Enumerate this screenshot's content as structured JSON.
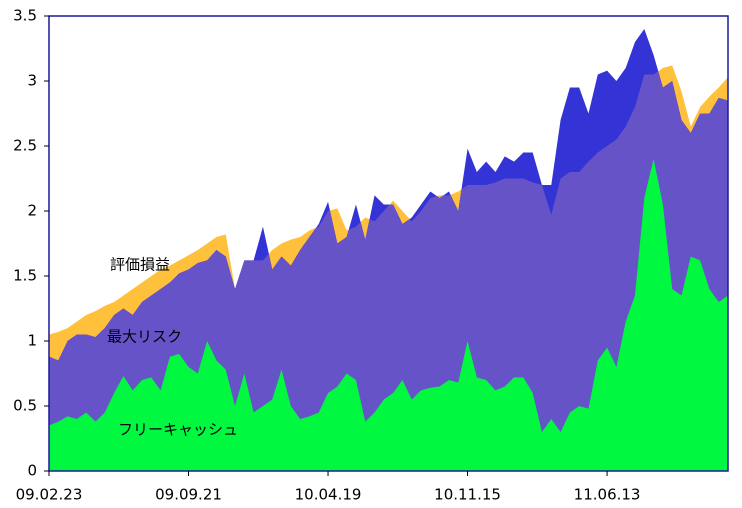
{
  "chart_data": {
    "type": "area",
    "categories": [
      "09.02.23",
      null,
      null,
      null,
      null,
      null,
      null,
      null,
      null,
      null,
      null,
      null,
      null,
      null,
      null,
      "09.09.21",
      null,
      null,
      null,
      null,
      null,
      null,
      null,
      null,
      null,
      null,
      null,
      null,
      null,
      null,
      "10.04.19",
      null,
      null,
      null,
      null,
      null,
      null,
      null,
      null,
      null,
      null,
      null,
      null,
      null,
      null,
      "10.11.15",
      null,
      null,
      null,
      null,
      null,
      null,
      null,
      null,
      null,
      null,
      null,
      null,
      null,
      null,
      "11.06.13",
      null,
      null,
      null,
      null,
      null,
      null,
      null,
      null,
      null,
      null,
      null,
      null,
      null
    ],
    "series": [
      {
        "name": "評価損益",
        "color": "#ffc13b",
        "values": [
          1.05,
          1.07,
          1.1,
          1.15,
          1.2,
          1.23,
          1.27,
          1.3,
          1.35,
          1.4,
          1.45,
          1.5,
          1.55,
          1.58,
          1.62,
          1.66,
          1.7,
          1.75,
          1.8,
          1.82,
          1.4,
          1.62,
          1.62,
          1.62,
          1.7,
          1.75,
          1.78,
          1.8,
          1.85,
          1.88,
          2.0,
          2.02,
          1.85,
          1.88,
          1.95,
          1.92,
          2.0,
          2.08,
          2.0,
          1.92,
          2.0,
          2.1,
          2.12,
          2.12,
          2.15,
          2.2,
          2.2,
          2.2,
          2.22,
          2.25,
          2.25,
          2.25,
          2.22,
          2.2,
          1.97,
          2.25,
          2.3,
          2.3,
          2.38,
          2.45,
          2.5,
          2.55,
          2.65,
          2.8,
          3.05,
          3.05,
          3.1,
          3.12,
          2.92,
          2.65,
          2.8,
          2.88,
          2.95,
          3.03
        ]
      },
      {
        "name": "最大リスク",
        "color": "#3333d6",
        "values": [
          0.88,
          0.85,
          1.0,
          1.05,
          1.05,
          1.03,
          1.1,
          1.2,
          1.25,
          1.2,
          1.3,
          1.35,
          1.4,
          1.45,
          1.52,
          1.55,
          1.6,
          1.62,
          1.7,
          1.65,
          1.4,
          1.62,
          1.62,
          1.88,
          1.55,
          1.65,
          1.58,
          1.7,
          1.8,
          1.9,
          2.07,
          1.75,
          1.8,
          2.05,
          1.78,
          2.12,
          2.05,
          2.05,
          1.9,
          1.95,
          2.05,
          2.15,
          2.1,
          2.15,
          2.0,
          2.48,
          2.3,
          2.38,
          2.3,
          2.42,
          2.38,
          2.45,
          2.45,
          2.2,
          2.2,
          2.7,
          2.95,
          2.95,
          2.75,
          3.05,
          3.08,
          3.0,
          3.1,
          3.3,
          3.4,
          3.2,
          2.95,
          3.0,
          2.7,
          2.6,
          2.75,
          2.75,
          2.87,
          2.85
        ]
      },
      {
        "name": "フリーキャッシュ",
        "color": "#00f840",
        "values": [
          0.35,
          0.38,
          0.42,
          0.4,
          0.45,
          0.38,
          0.45,
          0.6,
          0.73,
          0.62,
          0.7,
          0.72,
          0.62,
          0.88,
          0.9,
          0.8,
          0.75,
          1.0,
          0.85,
          0.78,
          0.5,
          0.75,
          0.45,
          0.5,
          0.55,
          0.78,
          0.5,
          0.4,
          0.42,
          0.45,
          0.6,
          0.65,
          0.75,
          0.7,
          0.38,
          0.45,
          0.55,
          0.6,
          0.7,
          0.55,
          0.62,
          0.64,
          0.65,
          0.7,
          0.68,
          1.0,
          0.72,
          0.7,
          0.62,
          0.65,
          0.72,
          0.72,
          0.6,
          0.3,
          0.4,
          0.3,
          0.45,
          0.5,
          0.48,
          0.85,
          0.95,
          0.8,
          1.15,
          1.35,
          2.1,
          2.4,
          2.05,
          1.4,
          1.35,
          1.65,
          1.62,
          1.4,
          1.3,
          1.35
        ]
      }
    ],
    "ylim": [
      0,
      3.5
    ],
    "yticks": [
      0,
      0.5,
      1,
      1.5,
      2,
      2.5,
      3,
      3.5
    ],
    "grid": false
  }
}
